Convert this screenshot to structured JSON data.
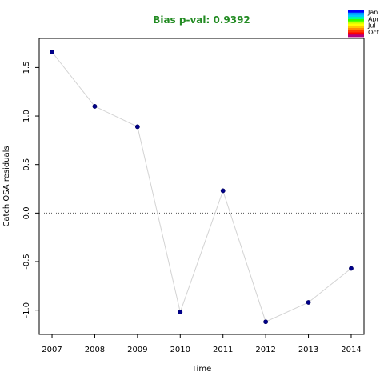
{
  "chart_data": {
    "type": "scatter",
    "title": "Bias p-val: 0.9392",
    "title_color": "#228b22",
    "xlabel": "Time",
    "ylabel": "Catch OSA residuals",
    "x": [
      2007,
      2008,
      2009,
      2010,
      2011,
      2012,
      2013,
      2014
    ],
    "y": [
      1.66,
      1.1,
      0.89,
      -1.02,
      0.23,
      -1.12,
      -0.92,
      -0.57
    ],
    "xlim": [
      2006.7,
      2014.3
    ],
    "ylim": [
      -1.25,
      1.8
    ],
    "x_ticks": [
      "2007",
      "2008",
      "2009",
      "2010",
      "2011",
      "2012",
      "2013",
      "2014"
    ],
    "y_ticks": [
      {
        "value": -1.0,
        "label": "-1.0"
      },
      {
        "value": -0.5,
        "label": "-0.5"
      },
      {
        "value": 0.0,
        "label": "0.0"
      },
      {
        "value": 0.5,
        "label": "0.5"
      },
      {
        "value": 1.0,
        "label": "1.0"
      },
      {
        "value": 1.5,
        "label": "1.5"
      }
    ],
    "reference_line": 0,
    "grid": false,
    "point_color": "#00008b",
    "line_color": "#d3d3d3",
    "legend": {
      "placement": "top-right",
      "labels": [
        "Jan",
        "Apr",
        "Jul",
        "Oct"
      ],
      "colors": [
        "#0000ff",
        "#0096ff",
        "#00c8ff",
        "#00ff96",
        "#32ff00",
        "#c8ff00",
        "#ffff00",
        "#ffc800",
        "#ff8c00",
        "#ff3c00",
        "#ff0000",
        "#b4007d"
      ]
    }
  }
}
